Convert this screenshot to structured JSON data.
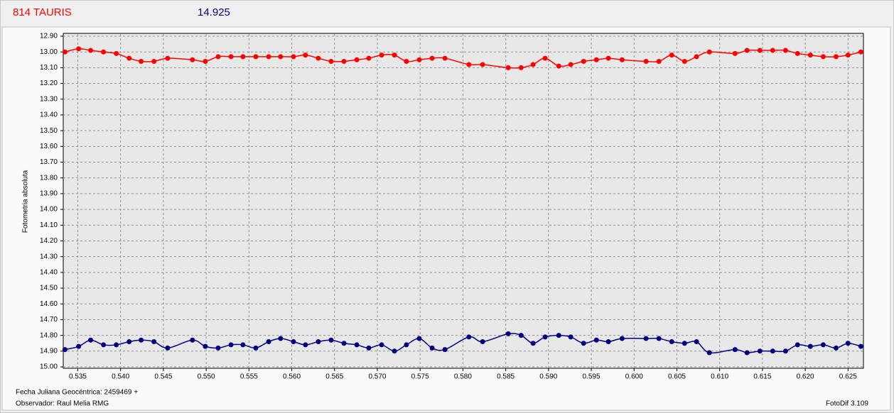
{
  "chart_data": {
    "type": "scatter",
    "title": "814 TAURIS",
    "subtitle": "14.925",
    "y_label": "Fotometria absoluta",
    "x_label": "Fecha Juliana Geocéntrica: 2459469 +",
    "observer": "Observador: Raul Melia RMG",
    "software": "FotoDif 3.109",
    "y_inverted": true,
    "grid": true,
    "smooth_line": true,
    "xlim": [
      0.5333,
      0.6268
    ],
    "ylim": [
      12.9,
      15.0
    ],
    "xticks": [
      0.535,
      {
        "value": 0.54,
        "label": "0.540"
      },
      0.545,
      {
        "value": 0.55,
        "label": "0.550"
      },
      0.555,
      {
        "value": 0.56,
        "label": "0.560"
      },
      0.565,
      {
        "value": 0.57,
        "label": "0.570"
      },
      0.575,
      {
        "value": 0.58,
        "label": "0.580"
      },
      0.585,
      {
        "value": 0.59,
        "label": "0.590"
      },
      0.595,
      {
        "value": 0.6,
        "label": "0.600"
      },
      0.605,
      {
        "value": 0.61,
        "label": "0.610"
      },
      0.615,
      {
        "value": 0.62,
        "label": "0.620"
      },
      0.625
    ],
    "yticks": [
      {
        "value": 12.9,
        "label": "12.90"
      },
      {
        "value": 13.0,
        "label": "13.00"
      },
      {
        "value": 13.1,
        "label": "13.10"
      },
      {
        "value": 13.2,
        "label": "13.20"
      },
      {
        "value": 13.3,
        "label": "13.30"
      },
      {
        "value": 13.4,
        "label": "13.40"
      },
      {
        "value": 13.5,
        "label": "13.50"
      },
      {
        "value": 13.6,
        "label": "13.60"
      },
      {
        "value": 13.7,
        "label": "13.70"
      },
      {
        "value": 13.8,
        "label": "13.80"
      },
      {
        "value": 13.9,
        "label": "13.90"
      },
      {
        "value": 14.0,
        "label": "14.00"
      },
      {
        "value": 14.1,
        "label": "14.10"
      },
      {
        "value": 14.2,
        "label": "14.20"
      },
      {
        "value": 14.3,
        "label": "14.30"
      },
      {
        "value": 14.4,
        "label": "14.40"
      },
      {
        "value": 14.5,
        "label": "14.50"
      },
      {
        "value": 14.6,
        "label": "14.60"
      },
      {
        "value": 14.7,
        "label": "14.70"
      },
      {
        "value": 14.8,
        "label": "14.80"
      },
      {
        "value": 14.9,
        "label": "14.90"
      },
      {
        "value": 15.0,
        "label": "15.00"
      }
    ],
    "x": [
      0.5335,
      0.5351,
      0.5365,
      0.538,
      0.5395,
      0.541,
      0.5424,
      0.5439,
      0.5455,
      0.5484,
      0.5499,
      0.5514,
      0.5529,
      0.5543,
      0.5558,
      0.5573,
      0.5587,
      0.5602,
      0.5616,
      0.5631,
      0.5646,
      0.5661,
      0.5676,
      0.569,
      0.5705,
      0.572,
      0.5734,
      0.5749,
      0.5764,
      0.5779,
      0.5807,
      0.5823,
      0.5853,
      0.5868,
      0.5882,
      0.5896,
      0.5912,
      0.5926,
      0.5941,
      0.5956,
      0.597,
      0.5986,
      0.6014,
      0.6029,
      0.6044,
      0.6059,
      0.6073,
      0.6088,
      0.6118,
      0.6132,
      0.6147,
      0.6162,
      0.6177,
      0.6191,
      0.6206,
      0.6221,
      0.6236,
      0.625,
      0.6265
    ],
    "series": [
      {
        "color": "#ff0000",
        "values": [
          13.0,
          12.98,
          12.99,
          13.0,
          13.01,
          13.04,
          13.06,
          13.06,
          13.04,
          13.05,
          13.06,
          13.03,
          13.03,
          13.03,
          13.03,
          13.03,
          13.03,
          13.03,
          13.02,
          13.04,
          13.06,
          13.06,
          13.05,
          13.04,
          13.02,
          13.02,
          13.06,
          13.05,
          13.04,
          13.04,
          13.08,
          13.08,
          13.1,
          13.1,
          13.08,
          13.04,
          13.09,
          13.08,
          13.06,
          13.05,
          13.04,
          13.05,
          13.06,
          13.06,
          13.02,
          13.06,
          13.03,
          13.0,
          13.01,
          12.99,
          12.99,
          12.99,
          12.99,
          13.01,
          13.02,
          13.03,
          13.03,
          13.02,
          13.0
        ]
      },
      {
        "color": "#000080",
        "values": [
          14.89,
          14.87,
          14.83,
          14.86,
          14.86,
          14.84,
          14.83,
          14.84,
          14.88,
          14.83,
          14.87,
          14.88,
          14.86,
          14.86,
          14.88,
          14.84,
          14.82,
          14.84,
          14.86,
          14.84,
          14.83,
          14.85,
          14.86,
          14.88,
          14.86,
          14.9,
          14.86,
          14.82,
          14.88,
          14.89,
          14.81,
          14.84,
          14.79,
          14.8,
          14.85,
          14.81,
          14.8,
          14.81,
          14.85,
          14.83,
          14.84,
          14.82,
          14.82,
          14.82,
          14.84,
          14.85,
          14.84,
          14.91,
          14.89,
          14.91,
          14.9,
          14.9,
          14.9,
          14.86,
          14.87,
          14.86,
          14.88,
          14.85,
          14.87
        ]
      }
    ]
  }
}
